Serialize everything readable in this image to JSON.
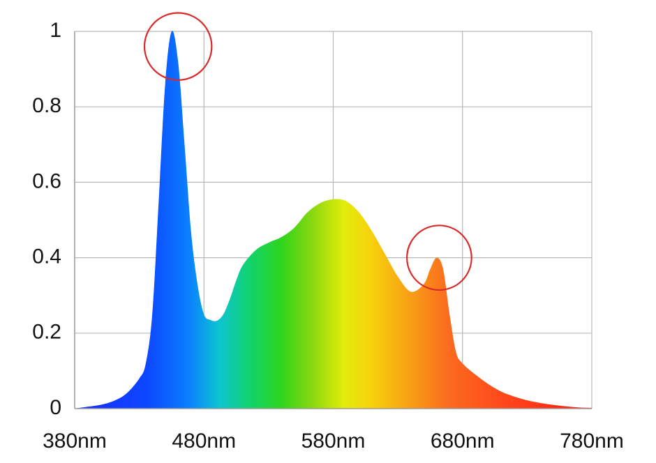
{
  "chart_data": {
    "type": "area",
    "title": "",
    "xlabel": "",
    "ylabel": "",
    "x_ticks": [
      {
        "value": 380,
        "label": "380nm"
      },
      {
        "value": 480,
        "label": "480nm"
      },
      {
        "value": 580,
        "label": "580nm"
      },
      {
        "value": 680,
        "label": "680nm"
      },
      {
        "value": 780,
        "label": "780nm"
      }
    ],
    "y_ticks": [
      {
        "value": 0,
        "label": "0"
      },
      {
        "value": 0.2,
        "label": "0.2"
      },
      {
        "value": 0.4,
        "label": "0.4"
      },
      {
        "value": 0.6,
        "label": "0.6"
      },
      {
        "value": 0.8,
        "label": "0.8"
      },
      {
        "value": 1,
        "label": "1"
      }
    ],
    "xlim": [
      380,
      780
    ],
    "ylim": [
      0,
      1
    ],
    "grid": true,
    "legend": "none",
    "fill": "visible-spectrum gradient",
    "series": [
      {
        "x": [
          380,
          390,
          400,
          410,
          420,
          430,
          435,
          440,
          445,
          450,
          455,
          460,
          465,
          470,
          475,
          480,
          485,
          490,
          495,
          500,
          505,
          510,
          520,
          530,
          540,
          550,
          560,
          570,
          580,
          590,
          600,
          610,
          620,
          630,
          640,
          650,
          655,
          660,
          665,
          670,
          675,
          680,
          690,
          700,
          710,
          720,
          730,
          740,
          750,
          760,
          770,
          780
        ],
        "y": [
          0.0,
          0.005,
          0.01,
          0.02,
          0.04,
          0.08,
          0.12,
          0.25,
          0.55,
          0.86,
          1.0,
          0.92,
          0.7,
          0.47,
          0.33,
          0.25,
          0.235,
          0.233,
          0.25,
          0.29,
          0.34,
          0.38,
          0.42,
          0.44,
          0.455,
          0.48,
          0.52,
          0.545,
          0.555,
          0.55,
          0.52,
          0.47,
          0.41,
          0.35,
          0.31,
          0.33,
          0.37,
          0.4,
          0.37,
          0.25,
          0.15,
          0.12,
          0.09,
          0.065,
          0.045,
          0.032,
          0.022,
          0.015,
          0.01,
          0.006,
          0.003,
          0.002
        ]
      }
    ],
    "annotations": [
      {
        "type": "circle",
        "x": 460,
        "y": 0.96,
        "radius_nm": 26,
        "color": "#d92a2a"
      },
      {
        "type": "circle",
        "x": 662,
        "y": 0.4,
        "radius_nm": 25,
        "color": "#d92a2a"
      }
    ]
  },
  "colors": {
    "grid": "#b8b8b8",
    "axis": "#9e9e9e",
    "annotation": "#d92a2a",
    "text": "#111111"
  }
}
